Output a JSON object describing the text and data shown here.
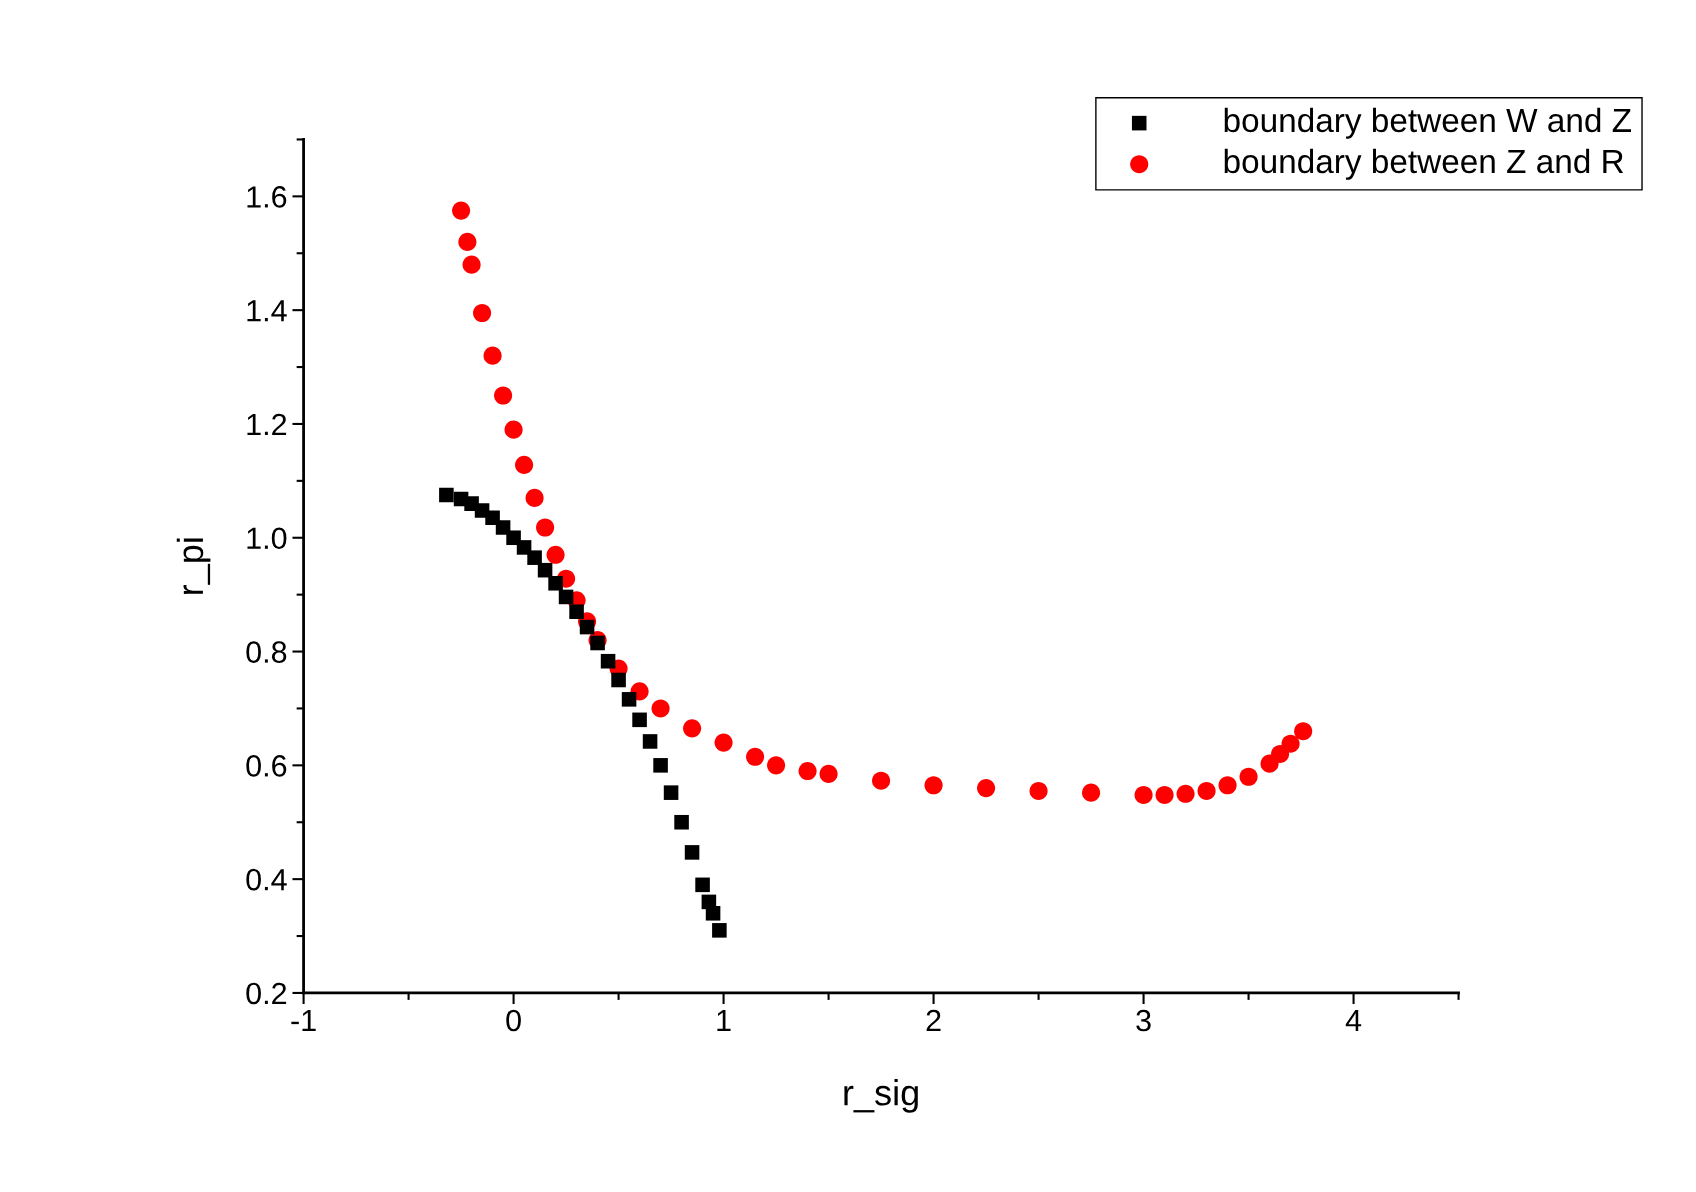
{
  "chart_data": {
    "type": "scatter",
    "xlabel": "r_sig",
    "ylabel": "r_pi",
    "xlim": [
      -1,
      4.5
    ],
    "xticks": [
      -1,
      0,
      1,
      2,
      3,
      4
    ],
    "ylim": [
      0.2,
      1.7
    ],
    "yticks": [
      0.2,
      0.4,
      0.6,
      0.8,
      {
        "value": 1,
        "label": "1.0"
      },
      1.2,
      1.4,
      1.6
    ],
    "grid": false,
    "legend": "top right",
    "series": [
      {
        "name": "boundary between W and Z",
        "color": "#000000",
        "marker": "square",
        "x": [
          -0.32,
          -0.25,
          -0.2,
          -0.15,
          -0.1,
          -0.05,
          0,
          0.05,
          0.1,
          0.15,
          0.2,
          0.25,
          0.3,
          0.35,
          0.4,
          0.45,
          0.5,
          0.55,
          0.6,
          0.65,
          0.7,
          0.75,
          0.8,
          0.85,
          0.9,
          0.93,
          0.95,
          0.98
        ],
        "values": [
          1.075,
          1.068,
          1.06,
          1.048,
          1.035,
          1.018,
          1.0,
          0.983,
          0.965,
          0.943,
          0.92,
          0.896,
          0.87,
          0.843,
          0.815,
          0.783,
          0.75,
          0.716,
          0.68,
          0.642,
          0.6,
          0.552,
          0.5,
          0.447,
          0.39,
          0.36,
          0.34,
          0.31
        ]
      },
      {
        "name": "boundary between Z and R",
        "color": "#ff0000",
        "marker": "circle",
        "x": [
          -0.25,
          -0.22,
          -0.2,
          -0.15,
          -0.1,
          -0.05,
          0,
          0.05,
          0.1,
          0.15,
          0.2,
          0.25,
          0.3,
          0.35,
          0.4,
          0.5,
          0.6,
          0.7,
          0.85,
          1.0,
          1.15,
          1.25,
          1.4,
          1.5,
          1.75,
          2.0,
          2.25,
          2.5,
          2.75,
          3.0,
          3.1,
          3.2,
          3.3,
          3.4,
          3.5,
          3.6,
          3.65,
          3.7,
          3.76
        ],
        "values": [
          1.575,
          1.52,
          1.48,
          1.395,
          1.32,
          1.25,
          1.19,
          1.128,
          1.07,
          1.018,
          0.97,
          0.928,
          0.89,
          0.853,
          0.82,
          0.77,
          0.73,
          0.7,
          0.665,
          0.64,
          0.615,
          0.6,
          0.59,
          0.585,
          0.573,
          0.565,
          0.56,
          0.555,
          0.552,
          0.548,
          0.548,
          0.55,
          0.555,
          0.565,
          0.58,
          0.603,
          0.62,
          0.638,
          0.66
        ]
      }
    ]
  }
}
